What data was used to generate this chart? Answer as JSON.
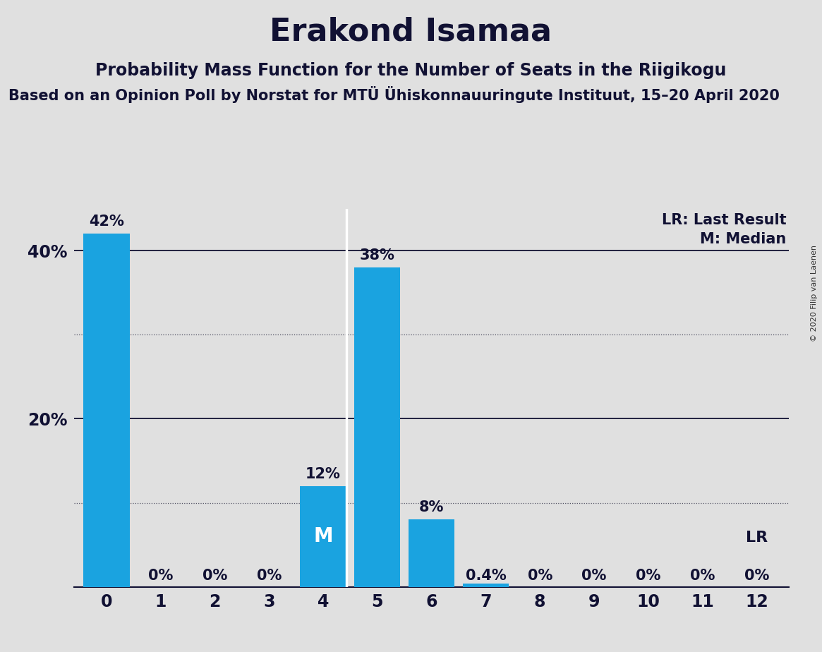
{
  "title": "Erakond Isamaa",
  "subtitle": "Probability Mass Function for the Number of Seats in the Riigikogu",
  "source": "Based on an Opinion Poll by Norstat for MTÜ Ühiskonnauuringute Instituut, 15–20 April 2020",
  "copyright": "© 2020 Filip van Laenen",
  "categories": [
    0,
    1,
    2,
    3,
    4,
    5,
    6,
    7,
    8,
    9,
    10,
    11,
    12
  ],
  "values": [
    42,
    0,
    0,
    0,
    12,
    38,
    8,
    0.4,
    0,
    0,
    0,
    0,
    0
  ],
  "bar_color": "#1aa3e0",
  "background_color": "#e0e0e0",
  "median_seat": 4,
  "lr_seat": 12,
  "ylim": [
    0,
    45
  ],
  "legend_lr": "LR: Last Result",
  "legend_m": "M: Median",
  "bar_labels": [
    "42%",
    "0%",
    "0%",
    "0%",
    "12%",
    "38%",
    "8%",
    "0.4%",
    "0%",
    "0%",
    "0%",
    "0%",
    "0%"
  ],
  "title_fontsize": 32,
  "subtitle_fontsize": 17,
  "source_fontsize": 15,
  "tick_fontsize": 17,
  "label_fontsize": 15,
  "legend_fontsize": 15
}
